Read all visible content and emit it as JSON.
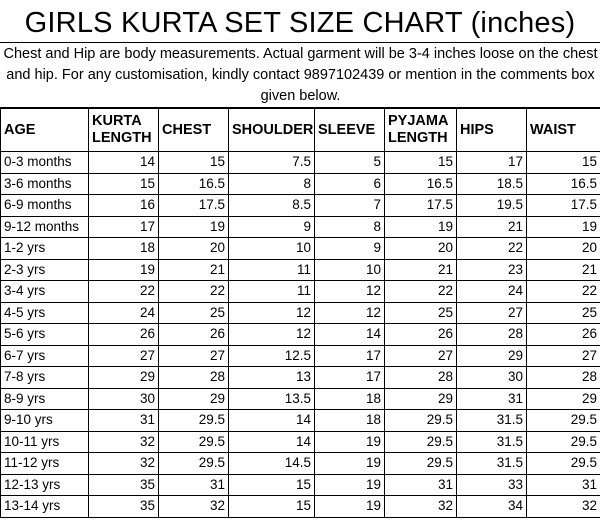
{
  "title": "GIRLS KURTA SET SIZE CHART (inches)",
  "note": "Chest and Hip are body measurements. Actual garment will be 3-4 inches loose on the chest and hip. For any customisation, kindly contact 9897102439 or mention in the comments box given below.",
  "headers": [
    "AGE",
    "KURTA LENGTH",
    "CHEST",
    "SHOULDER",
    "SLEEVE",
    "PYJAMA LENGTH",
    "HIPS",
    "WAIST"
  ],
  "rows": [
    [
      "0-3 months",
      "14",
      "15",
      "7.5",
      "5",
      "15",
      "17",
      "15"
    ],
    [
      "3-6 months",
      "15",
      "16.5",
      "8",
      "6",
      "16.5",
      "18.5",
      "16.5"
    ],
    [
      "6-9 months",
      "16",
      "17.5",
      "8.5",
      "7",
      "17.5",
      "19.5",
      "17.5"
    ],
    [
      "9-12 months",
      "17",
      "19",
      "9",
      "8",
      "19",
      "21",
      "19"
    ],
    [
      "1-2 yrs",
      "18",
      "20",
      "10",
      "9",
      "20",
      "22",
      "20"
    ],
    [
      "2-3 yrs",
      "19",
      "21",
      "11",
      "10",
      "21",
      "23",
      "21"
    ],
    [
      "3-4 yrs",
      "22",
      "22",
      "11",
      "12",
      "22",
      "24",
      "22"
    ],
    [
      "4-5 yrs",
      "24",
      "25",
      "12",
      "12",
      "25",
      "27",
      "25"
    ],
    [
      "5-6 yrs",
      "26",
      "26",
      "12",
      "14",
      "26",
      "28",
      "26"
    ],
    [
      "6-7 yrs",
      "27",
      "27",
      "12.5",
      "17",
      "27",
      "29",
      "27"
    ],
    [
      "7-8 yrs",
      "29",
      "28",
      "13",
      "17",
      "28",
      "30",
      "28"
    ],
    [
      "8-9 yrs",
      "30",
      "29",
      "13.5",
      "18",
      "29",
      "31",
      "29"
    ],
    [
      "9-10 yrs",
      "31",
      "29.5",
      "14",
      "18",
      "29.5",
      "31.5",
      "29.5"
    ],
    [
      "10-11 yrs",
      "32",
      "29.5",
      "14",
      "19",
      "29.5",
      "31.5",
      "29.5"
    ],
    [
      "11-12 yrs",
      "32",
      "29.5",
      "14.5",
      "19",
      "29.5",
      "31.5",
      "29.5"
    ],
    [
      "12-13 yrs",
      "35",
      "31",
      "15",
      "19",
      "31",
      "33",
      "31"
    ],
    [
      "13-14 yrs",
      "35",
      "32",
      "15",
      "19",
      "32",
      "34",
      "32"
    ]
  ]
}
